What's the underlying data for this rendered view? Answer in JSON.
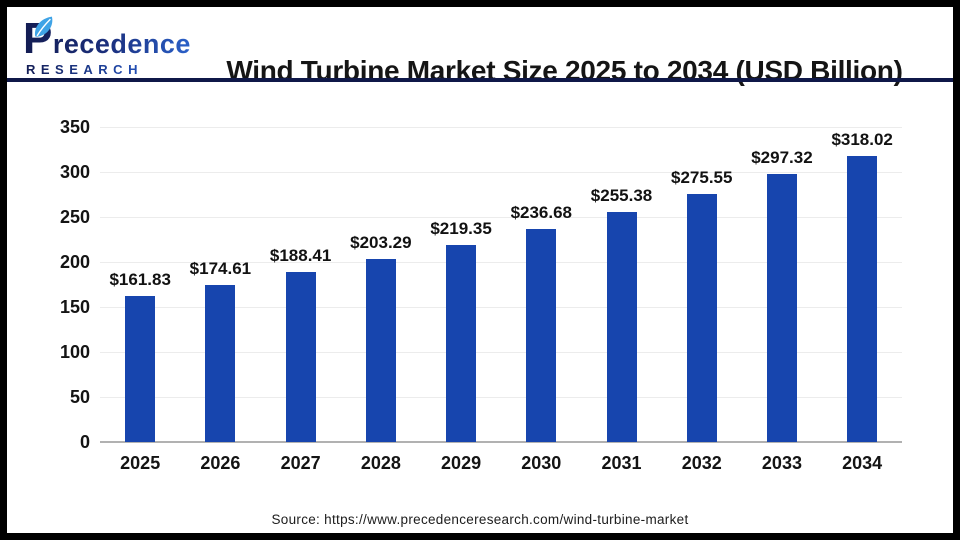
{
  "header": {
    "logo": {
      "name": "Precedence",
      "line2": "RESEARCH"
    },
    "title": "Wind Turbine Market Size 2025 to 2034 (USD Billion)"
  },
  "chart_data": {
    "type": "bar",
    "title": "Wind Turbine Market Size 2025 to 2034 (USD Billion)",
    "unit": "USD Billion",
    "categories": [
      "2025",
      "2026",
      "2027",
      "2028",
      "2029",
      "2030",
      "2031",
      "2032",
      "2033",
      "2034"
    ],
    "values": [
      161.83,
      174.61,
      188.41,
      203.29,
      219.35,
      236.68,
      255.38,
      275.55,
      297.32,
      318.02
    ],
    "value_labels": [
      "$161.83",
      "$174.61",
      "$188.41",
      "$203.29",
      "$219.35",
      "$236.68",
      "$255.38",
      "$275.55",
      "$297.32",
      "$318.02"
    ],
    "y_ticks": [
      0,
      50,
      100,
      150,
      200,
      250,
      300,
      350
    ],
    "ylim": [
      0,
      350
    ],
    "bar_color": "#1745ae",
    "grid": true,
    "legend_position": "none"
  },
  "footer": {
    "source": "Source: https://www.precedenceresearch.com/wind-turbine-market"
  },
  "colors": {
    "bar_blue": "#1745ae",
    "divider_navy": "#0f1848",
    "logo_gradient_start": "#131c52",
    "logo_gradient_end": "#2e6ede",
    "leaf_blue": "#3fa3e6",
    "gridline_gray": "#ececec",
    "axis_gray": "#b1b1b1"
  }
}
